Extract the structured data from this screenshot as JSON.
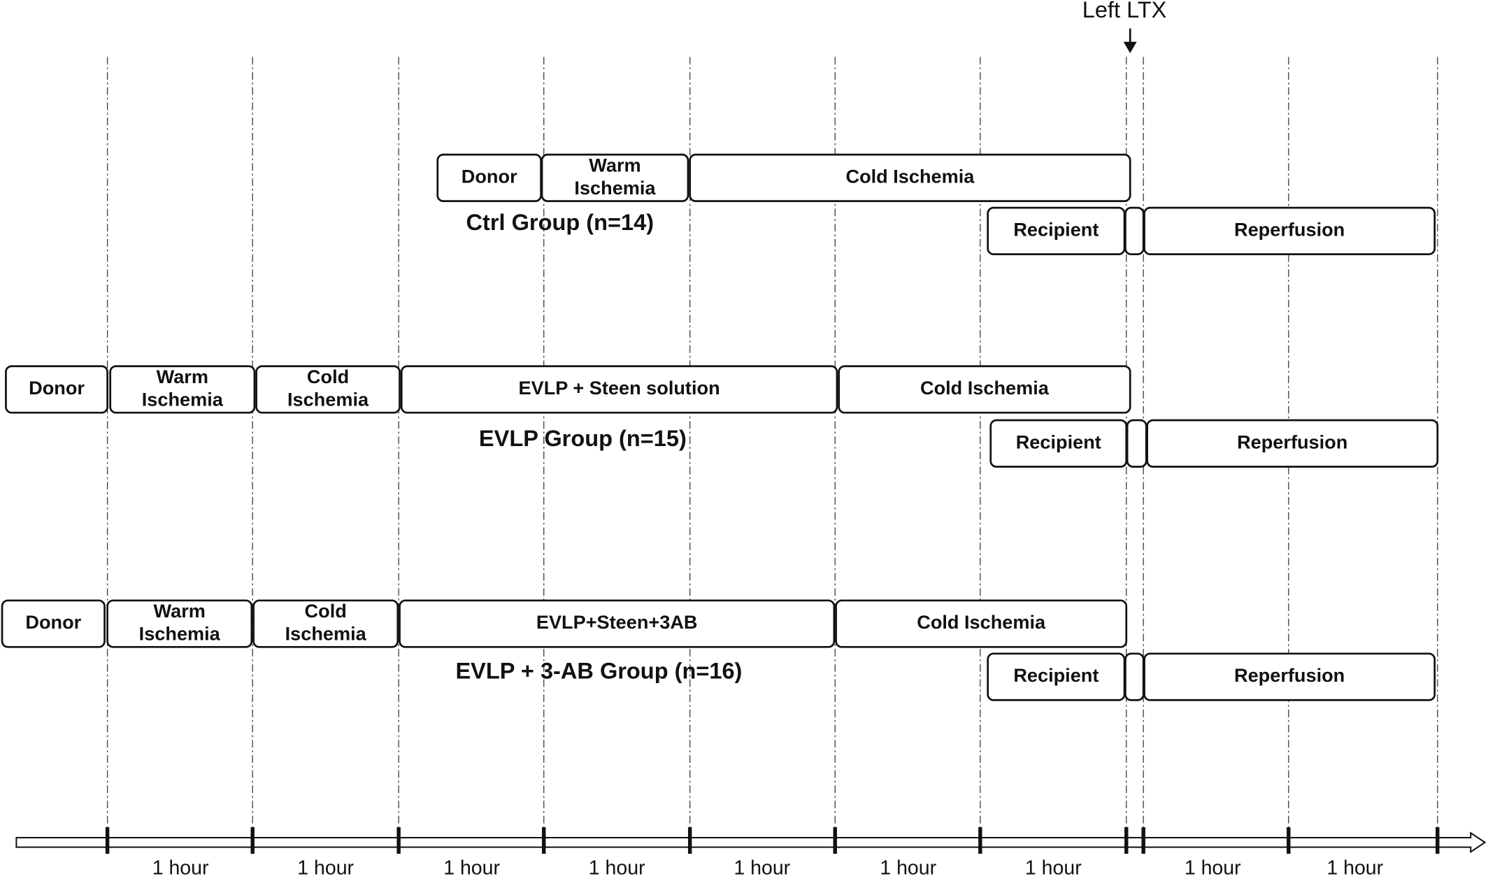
{
  "annotation": "Left LTX",
  "groups": [
    {
      "title": "Ctrl Group (n=14)",
      "donor_row": [
        [
          "Donor"
        ],
        [
          "Warm",
          "Ischemia"
        ],
        [
          "Cold Ischemia"
        ]
      ],
      "recipient_row": [
        [
          "Recipient"
        ],
        [
          "Reperfusion"
        ]
      ]
    },
    {
      "title": "EVLP Group (n=15)",
      "donor_row": [
        [
          "Donor"
        ],
        [
          "Warm",
          "Ischemia"
        ],
        [
          "Cold",
          "Ischemia"
        ],
        [
          "EVLP + Steen solution"
        ],
        [
          "Cold Ischemia"
        ]
      ],
      "recipient_row": [
        [
          "Recipient"
        ],
        [
          "Reperfusion"
        ]
      ]
    },
    {
      "title": "EVLP + 3-AB Group (n=16)",
      "donor_row": [
        [
          "Donor"
        ],
        [
          "Warm",
          "Ischemia"
        ],
        [
          "Cold",
          "Ischemia"
        ],
        [
          "EVLP+Steen+3AB"
        ],
        [
          "Cold Ischemia"
        ]
      ],
      "recipient_row": [
        [
          "Recipient"
        ],
        [
          "Reperfusion"
        ]
      ]
    }
  ],
  "timeline": {
    "labels": [
      "1 hour",
      "1 hour",
      "1 hour",
      "1 hour",
      "1 hour",
      "1 hour",
      "1 hour",
      "1 hour",
      "1 hour"
    ]
  }
}
